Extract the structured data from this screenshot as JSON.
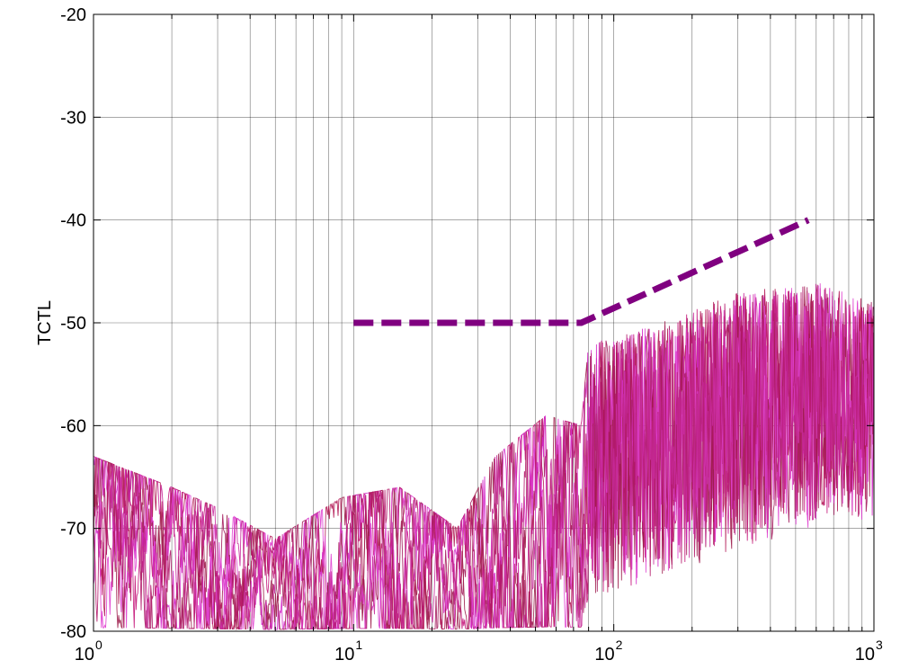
{
  "chart_data": {
    "type": "line",
    "title": "",
    "xlabel": "",
    "ylabel": "TCTL",
    "x_scale": "log",
    "xlim": [
      1,
      1000
    ],
    "ylim": [
      -80,
      -20
    ],
    "grid": true,
    "x_ticks": [
      {
        "base": "10",
        "exp": "0",
        "value": 1
      },
      {
        "base": "10",
        "exp": "1",
        "value": 10
      },
      {
        "base": "10",
        "exp": "2",
        "value": 100
      },
      {
        "base": "10",
        "exp": "3",
        "value": 1000
      }
    ],
    "y_ticks": [
      "-20",
      "-30",
      "-40",
      "-50",
      "-60",
      "-70",
      "-80"
    ],
    "limit_line": {
      "color": "#800080",
      "style": "dashed",
      "x": [
        10,
        75,
        560
      ],
      "y": [
        -50,
        -50,
        -40
      ]
    },
    "measured_series": {
      "count": 8,
      "colors": [
        "#a31a5c",
        "#c4167a",
        "#d428c8",
        "#b21a55",
        "#9c1c4a",
        "#e040d0",
        "#b3186a",
        "#c82a9a"
      ],
      "x_range": [
        1,
        1000
      ],
      "envelope": [
        {
          "x": 1,
          "y_low": -80,
          "y_high": -63
        },
        {
          "x": 2,
          "y_low": -80,
          "y_high": -66
        },
        {
          "x": 3,
          "y_low": -80,
          "y_high": -68
        },
        {
          "x": 5,
          "y_low": -80,
          "y_high": -71
        },
        {
          "x": 9,
          "y_low": -80,
          "y_high": -67
        },
        {
          "x": 15,
          "y_low": -80,
          "y_high": -66
        },
        {
          "x": 25,
          "y_low": -80,
          "y_high": -70
        },
        {
          "x": 35,
          "y_low": -80,
          "y_high": -63
        },
        {
          "x": 55,
          "y_low": -80,
          "y_high": -59
        },
        {
          "x": 75,
          "y_low": -80,
          "y_high": -60
        },
        {
          "x": 80,
          "y_low": -77,
          "y_high": -52
        },
        {
          "x": 150,
          "y_low": -75,
          "y_high": -50
        },
        {
          "x": 300,
          "y_low": -72,
          "y_high": -47
        },
        {
          "x": 600,
          "y_low": -70,
          "y_high": -46
        },
        {
          "x": 1000,
          "y_low": -69,
          "y_high": -48
        }
      ]
    }
  }
}
